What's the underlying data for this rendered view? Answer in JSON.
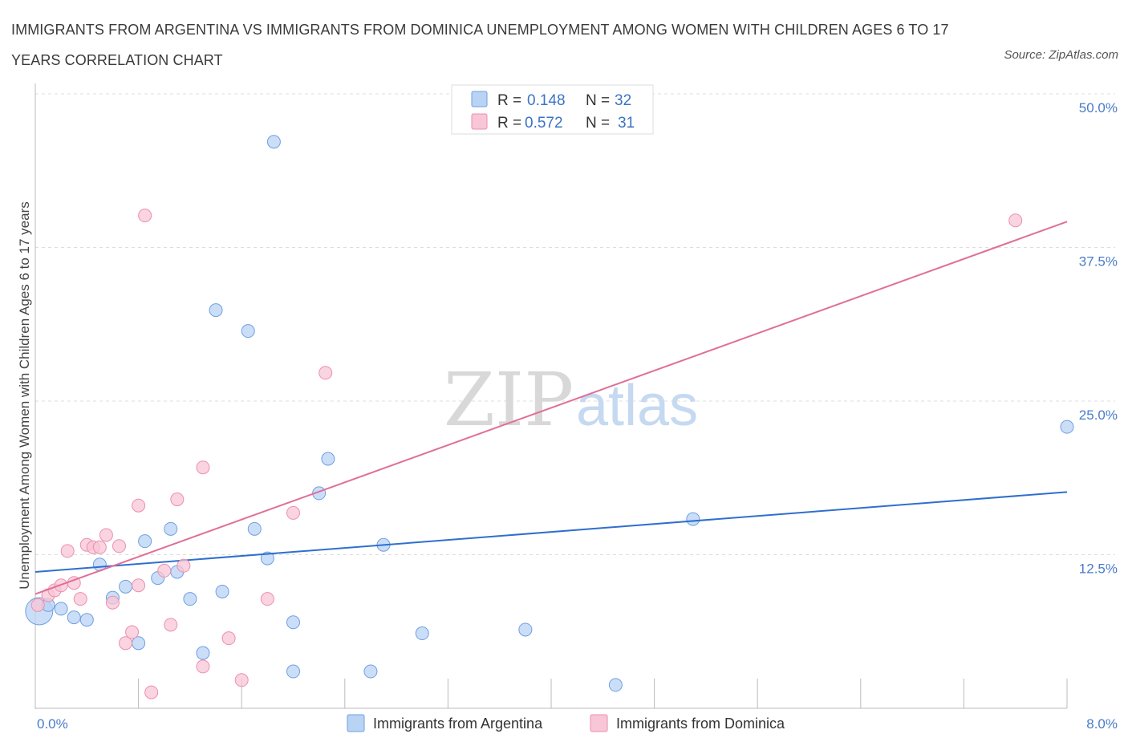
{
  "title": "IMMIGRANTS FROM ARGENTINA VS IMMIGRANTS FROM DOMINICA UNEMPLOYMENT AMONG WOMEN WITH CHILDREN AGES 6 TO 17 YEARS CORRELATION CHART",
  "source": "Source: ZipAtlas.com",
  "watermark": {
    "part1": "ZIP",
    "part2": "atlas"
  },
  "legend": {
    "rows": [
      {
        "r_label": "R =",
        "r_value": "0.148",
        "n_label": "N =",
        "n_value": "32"
      },
      {
        "r_label": "R =",
        "r_value": "0.572",
        "n_label": "N =",
        "n_value": "31"
      }
    ]
  },
  "bottom_legend": [
    "Immigrants from Argentina",
    "Immigrants from Dominica"
  ],
  "colors": {
    "argentina_fill": "#b9d3f5",
    "argentina_stroke": "#6f9fe0",
    "argentina_line": "#2f6fce",
    "dominica_fill": "#f8c6d6",
    "dominica_stroke": "#ec8fae",
    "dominica_line": "#e06f98",
    "tick_label": "#4a7cc9",
    "grid": "#dddddd"
  },
  "chart_data": {
    "type": "scatter",
    "title": "IMMIGRANTS FROM ARGENTINA VS IMMIGRANTS FROM DOMINICA UNEMPLOYMENT AMONG WOMEN WITH CHILDREN AGES 6 TO 17 YEARS CORRELATION CHART",
    "xlabel": "",
    "ylabel": "Unemployment Among Women with Children Ages 6 to 17 years",
    "xlim": [
      0,
      8
    ],
    "ylim": [
      0,
      50
    ],
    "x_tick_labels": [
      "0.0%",
      "8.0%"
    ],
    "y_tick_labels": [
      "12.5%",
      "25.0%",
      "37.5%",
      "50.0%"
    ],
    "y_ticks": [
      12.5,
      25.0,
      37.5,
      50.0
    ],
    "grid": true,
    "legend_position": "top-center",
    "series": [
      {
        "name": "Immigrants from Argentina",
        "R": 0.148,
        "N": 32,
        "trend": [
          [
            0,
            11.1
          ],
          [
            8,
            17.6
          ]
        ],
        "points": [
          [
            0.03,
            7.9,
            "large"
          ],
          [
            0.1,
            8.4
          ],
          [
            0.2,
            8.1
          ],
          [
            0.3,
            7.4
          ],
          [
            0.4,
            7.2
          ],
          [
            0.5,
            11.7
          ],
          [
            0.6,
            9.0
          ],
          [
            0.7,
            9.9
          ],
          [
            0.8,
            5.3
          ],
          [
            0.85,
            13.6
          ],
          [
            0.95,
            10.6
          ],
          [
            1.05,
            14.6
          ],
          [
            1.1,
            11.1
          ],
          [
            1.2,
            8.9
          ],
          [
            1.3,
            4.5
          ],
          [
            1.4,
            32.4
          ],
          [
            1.45,
            9.5
          ],
          [
            1.65,
            30.7
          ],
          [
            1.7,
            14.6
          ],
          [
            1.8,
            12.2
          ],
          [
            1.85,
            46.1
          ],
          [
            2.0,
            7.0
          ],
          [
            2.0,
            3.0
          ],
          [
            2.2,
            17.5
          ],
          [
            2.27,
            20.3
          ],
          [
            2.6,
            3.0
          ],
          [
            2.7,
            13.3
          ],
          [
            3.0,
            6.1
          ],
          [
            3.8,
            6.4
          ],
          [
            4.5,
            1.9
          ],
          [
            5.1,
            15.4
          ],
          [
            8.0,
            22.9
          ]
        ]
      },
      {
        "name": "Immigrants from Dominica",
        "R": 0.572,
        "N": 31,
        "trend": [
          [
            0,
            9.3
          ],
          [
            8,
            39.6
          ]
        ],
        "points": [
          [
            0.02,
            8.4
          ],
          [
            0.1,
            9.2
          ],
          [
            0.15,
            9.6
          ],
          [
            0.2,
            10.0
          ],
          [
            0.25,
            12.8
          ],
          [
            0.3,
            10.2
          ],
          [
            0.35,
            8.9
          ],
          [
            0.4,
            13.3
          ],
          [
            0.45,
            13.1
          ],
          [
            0.5,
            13.1
          ],
          [
            0.55,
            14.1
          ],
          [
            0.6,
            8.6
          ],
          [
            0.65,
            13.2
          ],
          [
            0.7,
            5.3
          ],
          [
            0.75,
            6.2
          ],
          [
            0.8,
            16.5
          ],
          [
            0.8,
            10.0
          ],
          [
            0.85,
            40.1
          ],
          [
            0.9,
            1.3
          ],
          [
            1.0,
            11.2
          ],
          [
            1.05,
            6.8
          ],
          [
            1.1,
            17.0
          ],
          [
            1.15,
            11.6
          ],
          [
            1.3,
            19.6
          ],
          [
            1.3,
            3.4
          ],
          [
            1.5,
            5.7
          ],
          [
            1.6,
            2.3
          ],
          [
            1.8,
            8.9
          ],
          [
            2.0,
            15.9
          ],
          [
            2.25,
            27.3
          ],
          [
            7.6,
            39.7
          ]
        ]
      }
    ]
  }
}
